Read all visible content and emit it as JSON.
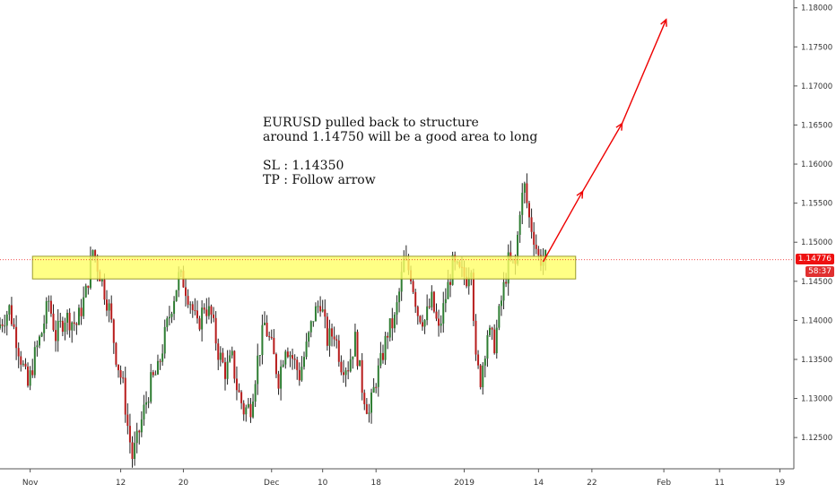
{
  "chart_data": {
    "type": "candlestick",
    "symbol": "EURUSD",
    "ylim": [
      1.121,
      1.181
    ],
    "y_ticks": [
      "1.12500",
      "1.13000",
      "1.13500",
      "1.14000",
      "1.14500",
      "1.15000",
      "1.15500",
      "1.16000",
      "1.16500",
      "1.17000",
      "1.17500",
      "1.18000"
    ],
    "x_ticks": [
      {
        "label": "Nov",
        "t": 1
      },
      {
        "label": "12",
        "t": 40
      },
      {
        "label": "20",
        "t": 67
      },
      {
        "label": "Dec",
        "t": 105
      },
      {
        "label": "10",
        "t": 127
      },
      {
        "label": "18",
        "t": 150
      },
      {
        "label": "2019",
        "t": 188
      },
      {
        "label": "14",
        "t": 220
      },
      {
        "label": "22",
        "t": 243
      },
      {
        "label": "Feb",
        "t": 274
      },
      {
        "label": "11",
        "t": 298
      },
      {
        "label": "19",
        "t": 324
      }
    ],
    "t_range": [
      -12,
      330
    ],
    "current_price": "1.14776",
    "countdown": "58:37",
    "current_value": 1.14776,
    "zone": {
      "t_start": 2,
      "t_end": 236,
      "y_low": 1.1453,
      "y_high": 1.1482
    },
    "arrow": [
      {
        "t": 222,
        "y": 1.1475
      },
      {
        "t": 239,
        "y": 1.1565
      },
      {
        "t": 256,
        "y": 1.1652
      },
      {
        "t": 275,
        "y": 1.1785
      }
    ],
    "price_path": [
      [
        -12,
        1.139
      ],
      [
        -7,
        1.1415
      ],
      [
        -2,
        1.1352
      ],
      [
        1,
        1.1315
      ],
      [
        4,
        1.1355
      ],
      [
        7,
        1.1385
      ],
      [
        10,
        1.1425
      ],
      [
        13,
        1.138
      ],
      [
        17,
        1.1405
      ],
      [
        22,
        1.1395
      ],
      [
        26,
        1.1435
      ],
      [
        29,
        1.149
      ],
      [
        32,
        1.146
      ],
      [
        36,
        1.1415
      ],
      [
        39,
        1.1355
      ],
      [
        42,
        1.1315
      ],
      [
        44,
        1.1265
      ],
      [
        46,
        1.1225
      ],
      [
        48,
        1.1245
      ],
      [
        51,
        1.1285
      ],
      [
        54,
        1.132
      ],
      [
        57,
        1.1335
      ],
      [
        60,
        1.138
      ],
      [
        63,
        1.142
      ],
      [
        66,
        1.1455
      ],
      [
        68,
        1.145
      ],
      [
        71,
        1.1425
      ],
      [
        74,
        1.139
      ],
      [
        77,
        1.142
      ],
      [
        80,
        1.1405
      ],
      [
        83,
        1.136
      ],
      [
        86,
        1.1335
      ],
      [
        89,
        1.135
      ],
      [
        91,
        1.1315
      ],
      [
        94,
        1.1285
      ],
      [
        97,
        1.129
      ],
      [
        100,
        1.135
      ],
      [
        103,
        1.1395
      ],
      [
        106,
        1.1365
      ],
      [
        109,
        1.1325
      ],
      [
        112,
        1.137
      ],
      [
        115,
        1.1352
      ],
      [
        118,
        1.133
      ],
      [
        121,
        1.1365
      ],
      [
        124,
        1.1405
      ],
      [
        127,
        1.1425
      ],
      [
        130,
        1.1375
      ],
      [
        133,
        1.1385
      ],
      [
        136,
        1.1345
      ],
      [
        139,
        1.1342
      ],
      [
        142,
        1.1375
      ],
      [
        145,
        1.1315
      ],
      [
        148,
        1.128
      ],
      [
        151,
        1.1325
      ],
      [
        153,
        1.1345
      ],
      [
        156,
        1.1385
      ],
      [
        159,
        1.14
      ],
      [
        161,
        1.1435
      ],
      [
        163,
        1.1475
      ],
      [
        166,
        1.146
      ],
      [
        169,
        1.141
      ],
      [
        172,
        1.14
      ],
      [
        175,
        1.1425
      ],
      [
        178,
        1.1385
      ],
      [
        181,
        1.143
      ],
      [
        184,
        1.147
      ],
      [
        187,
        1.146
      ],
      [
        190,
        1.1455
      ],
      [
        192,
        1.1475
      ],
      [
        194,
        1.1345
      ],
      [
        196,
        1.1325
      ],
      [
        199,
        1.1385
      ],
      [
        202,
        1.137
      ],
      [
        205,
        1.1425
      ],
      [
        208,
        1.1475
      ],
      [
        211,
        1.147
      ],
      [
        213,
        1.1545
      ],
      [
        215,
        1.157
      ],
      [
        217,
        1.153
      ],
      [
        219,
        1.1508
      ],
      [
        221,
        1.148
      ],
      [
        223,
        1.1478
      ]
    ],
    "bars_per_tick": 1
  },
  "annotation": {
    "line1": "EURUSD pulled back to structure",
    "line2": "around 1.14750 will be a good area to long",
    "line3": "SL : 1.14350",
    "line4": "TP : Follow arrow"
  },
  "colors": {
    "up": "#2e7d32",
    "down": "#b71c1c",
    "zone_fill": "#ffff66",
    "zone_stroke": "#9a9a30",
    "arrow": "#ee0000",
    "price_tag": "#ee1111",
    "countdown_tag": "#e03030"
  }
}
